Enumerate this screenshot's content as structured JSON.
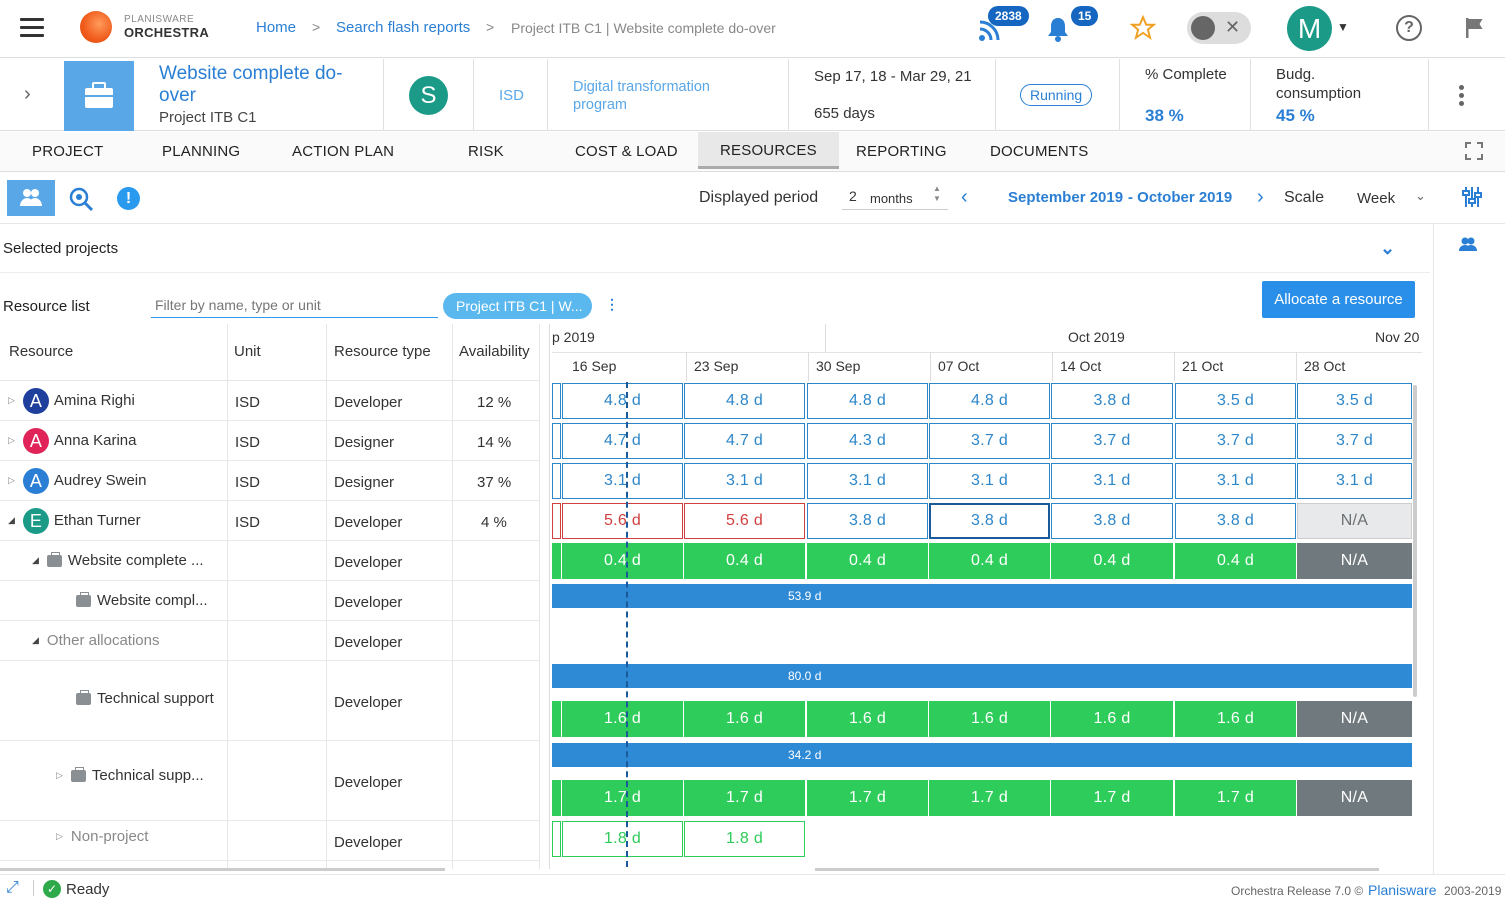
{
  "app": {
    "logo_line1": "PLANISWARE",
    "logo_line2": "ORCHESTRA"
  },
  "breadcrumb": {
    "home": "Home",
    "search": "Search flash reports",
    "current": "Project ITB C1 | Website complete do-over",
    "sep": ">"
  },
  "header_icons": {
    "feed_count": "2838",
    "notif_count": "15",
    "user_initial": "M"
  },
  "project": {
    "title": "Website complete do-over",
    "subtitle": "Project ITB C1",
    "owner_initial": "S",
    "unit": "ISD",
    "program": "Digital transformation program",
    "dates": "Sep 17, 18 - Mar 29, 21",
    "duration": "655 days",
    "status": "Running",
    "complete_label": "% Complete",
    "complete_value": "38 %",
    "budget_label": "Budg. consumption",
    "budget_value": "45 %"
  },
  "tabs": [
    "PROJECT",
    "PLANNING",
    "ACTION PLAN",
    "RISK",
    "COST & LOAD",
    "RESOURCES",
    "REPORTING",
    "DOCUMENTS"
  ],
  "toolbar": {
    "period_label": "Displayed period",
    "period_count": "2",
    "period_unit": "months",
    "period_start": "September 2019",
    "period_end": "- October 2019",
    "scale_label": "Scale",
    "scale_value": "Week"
  },
  "selected_projects": "Selected projects",
  "resource_list": {
    "label": "Resource list",
    "filter_placeholder": "Filter by name, type or unit",
    "project_chip": "Project ITB C1 | W...",
    "allocate_button": "Allocate a resource"
  },
  "columns": {
    "resource": "Resource",
    "unit": "Unit",
    "type": "Resource type",
    "availability": "Availability"
  },
  "months": [
    "p 2019",
    "Oct 2019",
    "Nov 20"
  ],
  "weeks": [
    "16 Sep",
    "23 Sep",
    "30 Sep",
    "07 Oct",
    "14 Oct",
    "21 Oct",
    "28 Oct"
  ],
  "rows": [
    {
      "name": "Amina Righi",
      "initial": "A",
      "color": "#1f3f9c",
      "unit": "ISD",
      "type": "Developer",
      "avail": "12 %"
    },
    {
      "name": "Anna Karina",
      "initial": "A",
      "color": "#e0245a",
      "unit": "ISD",
      "type": "Designer",
      "avail": "14 %"
    },
    {
      "name": "Audrey Swein",
      "initial": "A",
      "color": "#2a7fd4",
      "unit": "ISD",
      "type": "Designer",
      "avail": "37 %"
    },
    {
      "name": "Ethan Turner",
      "initial": "E",
      "color": "#1a9a87",
      "unit": "ISD",
      "type": "Developer",
      "avail": "4 %"
    },
    {
      "name": "Website complete ...",
      "type": "Developer"
    },
    {
      "name": "Website compl...",
      "type": "Developer"
    },
    {
      "name": "Other allocations",
      "type": "Developer"
    },
    {
      "name": "Technical support",
      "type": "Developer"
    },
    {
      "name": "Technical supp...",
      "type": "Developer"
    },
    {
      "name": "Non-project",
      "type": "Developer"
    }
  ],
  "grid": {
    "r0": [
      "4.8 d",
      "4.8 d",
      "4.8 d",
      "4.8 d",
      "3.8 d",
      "3.5 d",
      "3.5 d"
    ],
    "r1": [
      "4.7 d",
      "4.7 d",
      "4.3 d",
      "3.7 d",
      "3.7 d",
      "3.7 d",
      "3.7 d"
    ],
    "r2": [
      "3.1 d",
      "3.1 d",
      "3.1 d",
      "3.1 d",
      "3.1 d",
      "3.1 d",
      "3.1 d"
    ],
    "r3": [
      "5.6 d",
      "5.6 d",
      "3.8 d",
      "3.8 d",
      "3.8 d",
      "3.8 d",
      "N/A"
    ],
    "r4": [
      "0.4 d",
      "0.4 d",
      "0.4 d",
      "0.4 d",
      "0.4 d",
      "0.4 d",
      "N/A"
    ],
    "bar1": "53.9 d",
    "bar2": "80.0 d",
    "r7": [
      "1.6 d",
      "1.6 d",
      "1.6 d",
      "1.6 d",
      "1.6 d",
      "1.6 d",
      "N/A"
    ],
    "bar3": "34.2 d",
    "r8": [
      "1.7 d",
      "1.7 d",
      "1.7 d",
      "1.7 d",
      "1.7 d",
      "1.7 d",
      "N/A"
    ],
    "r9": [
      "1.8 d",
      "1.8 d"
    ]
  },
  "footer": {
    "status": "Ready",
    "release": "Orchestra Release 7.0 ©",
    "brand": "Planisware",
    "years": "2003-2019"
  }
}
